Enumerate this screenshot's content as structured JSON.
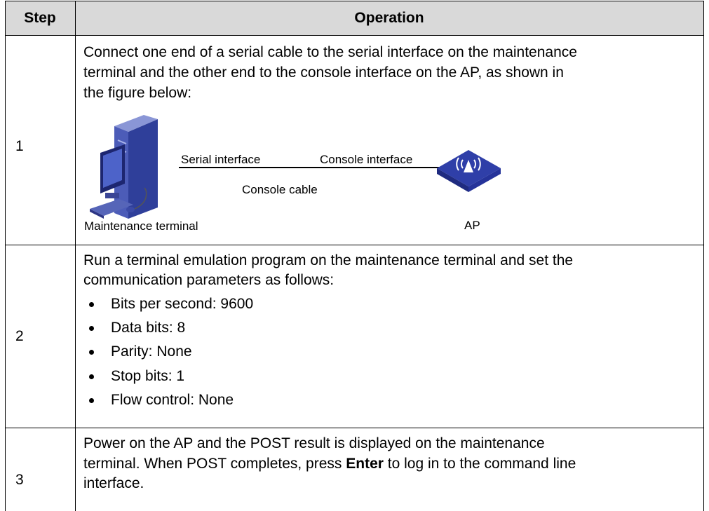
{
  "table": {
    "headers": [
      "Step",
      "Operation"
    ],
    "rows": [
      {
        "step": "1",
        "lines": [
          "Connect one end of a serial cable to the serial interface on the maintenance",
          "terminal and the other end to the console interface on the AP, as shown in",
          "the figure below:"
        ],
        "figure": {
          "serial_interface": "Serial interface",
          "console_interface": "Console interface",
          "console_cable": "Console cable",
          "terminal": "Maintenance terminal",
          "device": "AP"
        }
      },
      {
        "step": "2",
        "lines": [
          "Run a terminal emulation program on the maintenance terminal and set the",
          "communication parameters as follows:"
        ],
        "bullets": [
          "Bits per second: 9600",
          "Data bits: 8",
          "Parity: None",
          "Stop bits: 1",
          "Flow control: None"
        ]
      },
      {
        "step": "3",
        "lines": [
          "Power on the AP and the POST result is displayed on the maintenance",
          {
            "before": "terminal. When POST completes, press ",
            "bold": "Enter",
            "after": " to log in to the command line"
          },
          "interface."
        ]
      }
    ]
  }
}
